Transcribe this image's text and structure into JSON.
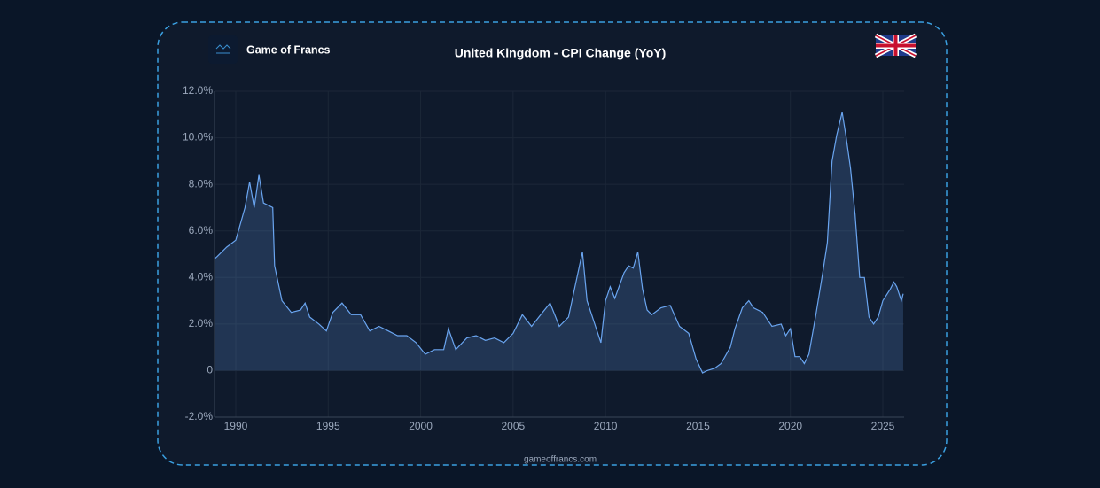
{
  "brand": "Game of Francs",
  "footer": "gameoffrancs.com",
  "chart_data": {
    "type": "area",
    "title": "United Kingdom - CPI Change (YoY)",
    "series": [
      {
        "name": "CPI Change (YoY)",
        "color": "#6aa5f0",
        "x": [
          1988.85,
          1989.0,
          1989.5,
          1990.0,
          1990.5,
          1990.75,
          1991.0,
          1991.25,
          1991.5,
          1992.0,
          1992.1,
          1992.5,
          1993.0,
          1993.5,
          1993.75,
          1994.0,
          1994.5,
          1994.9,
          1995.25,
          1995.75,
          1996.25,
          1996.75,
          1997.25,
          1997.75,
          1998.25,
          1998.75,
          1999.25,
          1999.75,
          2000.25,
          2000.75,
          2001.25,
          2001.5,
          2001.9,
          2002.5,
          2003.0,
          2003.5,
          2004.0,
          2004.5,
          2005.0,
          2005.5,
          2006.0,
          2006.5,
          2007.0,
          2007.5,
          2008.0,
          2008.4,
          2008.75,
          2009.0,
          2009.5,
          2009.75,
          2010.0,
          2010.25,
          2010.5,
          2011.0,
          2011.25,
          2011.5,
          2011.75,
          2012.0,
          2012.25,
          2012.5,
          2013.0,
          2013.5,
          2014.0,
          2014.5,
          2014.9,
          2015.25,
          2015.5,
          2015.9,
          2016.25,
          2016.75,
          2017.0,
          2017.4,
          2017.75,
          2018.0,
          2018.5,
          2019.0,
          2019.5,
          2019.75,
          2020.0,
          2020.25,
          2020.5,
          2020.75,
          2021.0,
          2021.4,
          2021.75,
          2022.0,
          2022.25,
          2022.5,
          2022.8,
          2023.0,
          2023.25,
          2023.5,
          2023.75,
          2024.0,
          2024.25,
          2024.5,
          2024.75,
          2025.0,
          2025.4,
          2025.6,
          2025.75,
          2026.0,
          2026.1
        ],
        "values": [
          4.8,
          4.9,
          5.3,
          5.6,
          7.0,
          8.1,
          7.0,
          8.4,
          7.2,
          7.0,
          4.5,
          3.0,
          2.5,
          2.6,
          2.9,
          2.3,
          2.0,
          1.7,
          2.5,
          2.9,
          2.4,
          2.4,
          1.7,
          1.9,
          1.7,
          1.5,
          1.5,
          1.2,
          0.7,
          0.9,
          0.9,
          1.8,
          0.9,
          1.4,
          1.5,
          1.3,
          1.4,
          1.2,
          1.6,
          2.4,
          1.9,
          2.4,
          2.9,
          1.9,
          2.3,
          3.8,
          5.1,
          3.0,
          1.8,
          1.2,
          3.0,
          3.6,
          3.1,
          4.2,
          4.5,
          4.4,
          5.1,
          3.5,
          2.6,
          2.4,
          2.7,
          2.8,
          1.9,
          1.6,
          0.5,
          -0.1,
          0.0,
          0.1,
          0.3,
          1.0,
          1.8,
          2.7,
          3.0,
          2.7,
          2.5,
          1.9,
          2.0,
          1.5,
          1.8,
          0.6,
          0.6,
          0.3,
          0.7,
          2.5,
          4.2,
          5.5,
          9.0,
          10.1,
          11.1,
          10.1,
          8.7,
          6.7,
          4.0,
          4.0,
          2.3,
          2.0,
          2.3,
          3.0,
          3.5,
          3.8,
          3.6,
          3.0,
          3.3
        ]
      }
    ],
    "xlim": [
      1988.85,
      2026.15
    ],
    "xticks": [
      1990,
      1995,
      2000,
      2005,
      2010,
      2015,
      2020,
      2025
    ],
    "ylim": [
      -2,
      12
    ],
    "yticks": [
      {
        "value": -2,
        "label": "-2.0%"
      },
      0,
      {
        "value": 2,
        "label": "2.0%"
      },
      {
        "value": 4,
        "label": "4.0%"
      },
      {
        "value": 6,
        "label": "6.0%"
      },
      {
        "value": 8,
        "label": "8.0%"
      },
      {
        "value": 10,
        "label": "10.0%"
      },
      {
        "value": 12,
        "label": "12.0%"
      }
    ],
    "grid": true
  }
}
